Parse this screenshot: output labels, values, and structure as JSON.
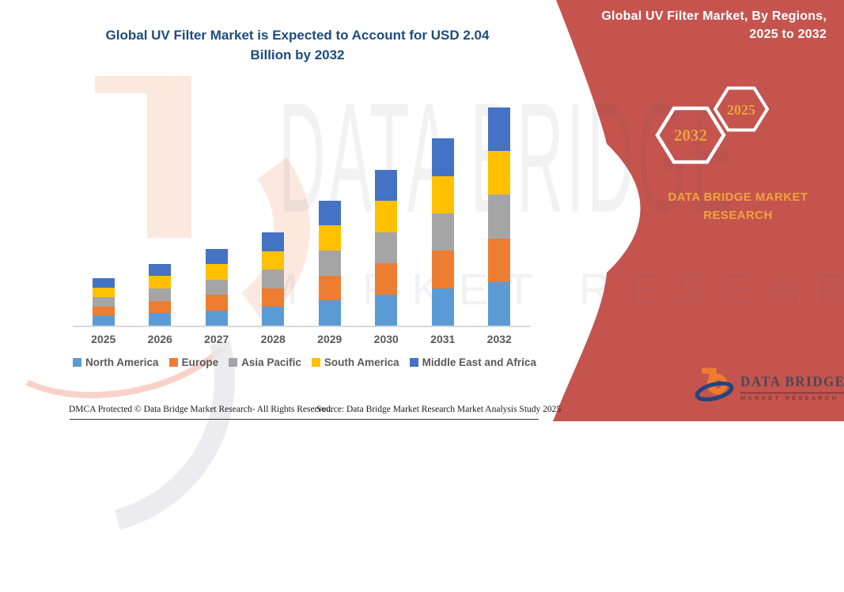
{
  "title_lines": [
    "Global UV Filter Market is Expected to Account for USD 2.04",
    "Billion by 2032"
  ],
  "chart_data": {
    "type": "bar",
    "stacked": true,
    "title": "Global UV Filter Market is Expected to Account for USD 2.04 Billion by 2032",
    "unit": "USD Billion",
    "categories": [
      "2025",
      "2026",
      "2027",
      "2028",
      "2029",
      "2030",
      "2031",
      "2032"
    ],
    "series": [
      {
        "name": "North America",
        "color": "#5B9BD5",
        "values": [
          0.088,
          0.116,
          0.144,
          0.174,
          0.234,
          0.292,
          0.35,
          0.408
        ]
      },
      {
        "name": "Europe",
        "color": "#ED7D31",
        "values": [
          0.088,
          0.116,
          0.144,
          0.174,
          0.234,
          0.292,
          0.35,
          0.408
        ]
      },
      {
        "name": "Asia Pacific",
        "color": "#A5A5A5",
        "values": [
          0.088,
          0.116,
          0.144,
          0.174,
          0.234,
          0.292,
          0.35,
          0.408
        ]
      },
      {
        "name": "South America",
        "color": "#FFC000",
        "values": [
          0.088,
          0.116,
          0.144,
          0.174,
          0.234,
          0.292,
          0.35,
          0.408
        ]
      },
      {
        "name": "Middle East and Africa",
        "color": "#4472C4",
        "values": [
          0.088,
          0.116,
          0.144,
          0.174,
          0.234,
          0.292,
          0.35,
          0.408
        ]
      }
    ],
    "totals": [
      0.44,
      0.58,
      0.72,
      0.87,
      1.17,
      1.46,
      1.75,
      2.04
    ],
    "legend_position": "bottom",
    "y_axis": {
      "visible": false,
      "max": 2.1
    }
  },
  "right_panel": {
    "header_lines": [
      "Global UV Filter Market, By Regions,",
      "2025 to 2032"
    ],
    "hexagons": [
      {
        "label": "2032"
      },
      {
        "label": "2025"
      }
    ],
    "brand_lines": [
      "DATA BRIDGE MARKET",
      "RESEARCH"
    ],
    "panel_color": "#C5544F",
    "accent_color": "#E9A23B"
  },
  "logo": {
    "title": "DATA BRIDGE",
    "subtitle": "MARKET RESEARCH"
  },
  "watermarks": {
    "big_text": "DATA BRIDGE",
    "sub_text": "MARKET RESEARCH"
  },
  "footer": {
    "dmca": "DMCA Protected © Data Bridge Market Research-  All Rights Reserved.",
    "source": "Source: Data Bridge Market Research  Market Analysis Study 2025"
  }
}
